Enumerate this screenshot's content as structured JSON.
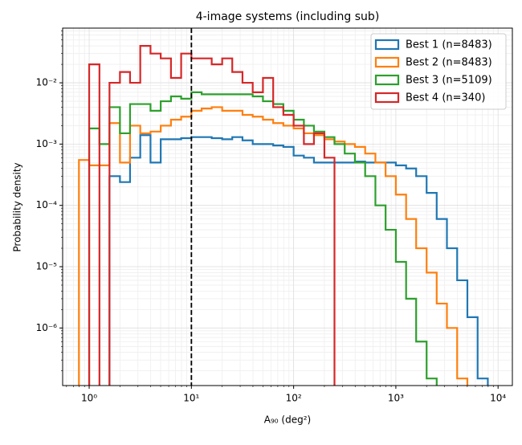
{
  "chart_data": {
    "type": "histogram-step",
    "title": "4-image systems (including sub)",
    "xlabel": "A₉₀ (deg²)",
    "ylabel": "Probability density",
    "xscale": "log",
    "yscale": "log",
    "grid": true,
    "minor_grid": true,
    "legend": "upper right",
    "vline": 10,
    "xlim": [
      0.55,
      13800
    ],
    "ylim": [
      1.15e-07,
      0.078
    ],
    "xticks": [
      {
        "value": 1,
        "label": "10⁰"
      },
      {
        "value": 10,
        "label": "10¹"
      },
      {
        "value": 100,
        "label": "10²"
      },
      {
        "value": 1000,
        "label": "10³"
      },
      {
        "value": 10000,
        "label": "10⁴"
      }
    ],
    "yticks": [
      {
        "value": 1e-06,
        "label": "10⁻⁶"
      },
      {
        "value": 1e-05,
        "label": "10⁻⁵"
      },
      {
        "value": 0.0001,
        "label": "10⁻⁴"
      },
      {
        "value": 0.001,
        "label": "10⁻³"
      },
      {
        "value": 0.01,
        "label": "10⁻²"
      }
    ],
    "bins": [
      0.794,
      1,
      1.26,
      1.58,
      2,
      2.51,
      3.16,
      3.98,
      5.01,
      6.31,
      7.94,
      10,
      12.6,
      15.8,
      20,
      25.1,
      31.6,
      39.8,
      50.1,
      63.1,
      79.4,
      100,
      126,
      158,
      200,
      251,
      316,
      398,
      501,
      631,
      794,
      1000,
      1260,
      1580,
      2000,
      2510,
      3160,
      3980,
      5010,
      6310,
      7940,
      10000
    ],
    "series": [
      {
        "name": "Best 1 (n=8483)",
        "color": "#1f77b4",
        "values": [
          null,
          null,
          null,
          0.0003,
          0.00024,
          0.0006,
          0.0014,
          0.0005,
          0.0012,
          0.0012,
          0.00125,
          0.0013,
          0.0013,
          0.00125,
          0.0012,
          0.0013,
          0.00115,
          0.001,
          0.001,
          0.00095,
          0.0009,
          0.00065,
          0.0006,
          0.0005,
          0.0005,
          0.0005,
          0.0005,
          0.00052,
          0.0005,
          0.0005,
          0.0005,
          0.00045,
          0.0004,
          0.0003,
          0.00016,
          6e-05,
          2e-05,
          6e-06,
          1.5e-06,
          1.5e-07,
          null
        ]
      },
      {
        "name": "Best 2 (n=8483)",
        "color": "#ff7f0e",
        "values": [
          0.00055,
          0.00045,
          0.00045,
          0.0022,
          0.0005,
          0.002,
          0.0015,
          0.0016,
          0.002,
          0.0025,
          0.0028,
          0.0035,
          0.0038,
          0.004,
          0.0035,
          0.0035,
          0.003,
          0.0028,
          0.0025,
          0.0022,
          0.002,
          0.0018,
          0.0015,
          0.0014,
          0.0012,
          0.0011,
          0.001,
          0.0009,
          0.0007,
          0.0005,
          0.0003,
          0.00015,
          6e-05,
          2e-05,
          8e-06,
          2.5e-06,
          1e-06,
          1.5e-07,
          null,
          null,
          null
        ]
      },
      {
        "name": "Best 3 (n=5109)",
        "color": "#2ca02c",
        "values": [
          null,
          0.0018,
          0.001,
          0.004,
          0.0015,
          0.0045,
          0.0045,
          0.0035,
          0.005,
          0.006,
          0.0055,
          0.007,
          0.0065,
          0.0065,
          0.0065,
          0.0065,
          0.0065,
          0.006,
          0.005,
          0.0045,
          0.0035,
          0.0025,
          0.002,
          0.0016,
          0.0013,
          0.001,
          0.0007,
          0.0005,
          0.0003,
          0.0001,
          4e-05,
          1.2e-05,
          3e-06,
          6e-07,
          1.5e-07,
          null,
          null,
          null,
          null,
          null,
          null
        ]
      },
      {
        "name": "Best 4 (n=340)",
        "color": "#d62728",
        "values": [
          null,
          0.02,
          null,
          0.01,
          0.015,
          0.01,
          0.04,
          0.03,
          0.025,
          0.012,
          0.03,
          0.025,
          0.025,
          0.02,
          0.025,
          0.015,
          0.01,
          0.007,
          0.012,
          0.004,
          0.003,
          0.002,
          0.001,
          0.0015,
          0.0006,
          null,
          null,
          null,
          null,
          null,
          null,
          null,
          null,
          null,
          null,
          null,
          null,
          null,
          null,
          null,
          null
        ]
      }
    ]
  }
}
